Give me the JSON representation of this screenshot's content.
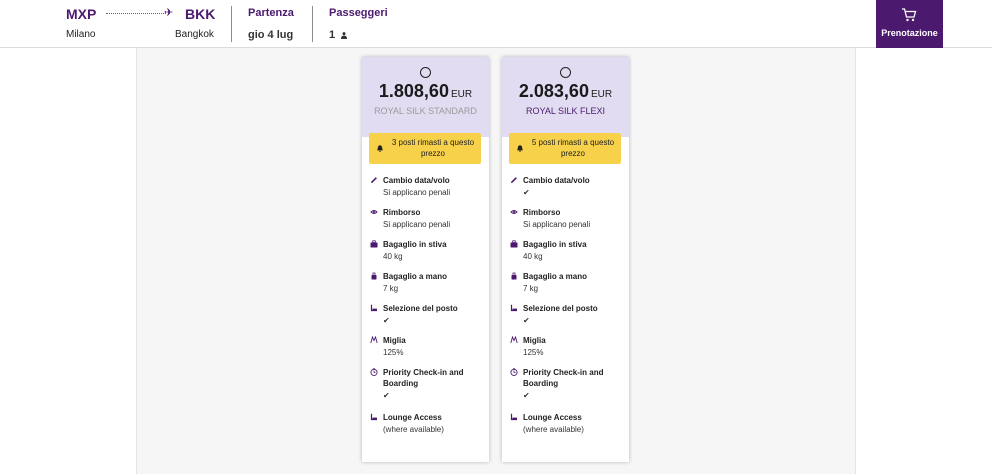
{
  "header": {
    "origin_code": "MXP",
    "origin_city": "Milano",
    "dest_code": "BKK",
    "dest_city": "Bangkok",
    "departure_label": "Partenza",
    "departure_value": "gio 4 lug",
    "passengers_label": "Passeggeri",
    "passengers_value": "1",
    "cart_label": "Prenotazione"
  },
  "colors": {
    "brand_purple": "#4b1a6e",
    "card_header": "#e2dcf2",
    "seats_badge": "#f7d14a"
  },
  "fares": [
    {
      "price": "1.808,60",
      "currency": "EUR",
      "name": "ROYAL SILK STANDARD",
      "name_color": "#9a9a9a",
      "seats": "3 posti rimasti a questo prezzo",
      "features": [
        {
          "icon": "pencil-icon",
          "title": "Cambio data/volo",
          "value": "Si applicano penali"
        },
        {
          "icon": "refund-icon",
          "title": "Rimborso",
          "value": "Si applicano penali"
        },
        {
          "icon": "checked-bag-icon",
          "title": "Bagaglio in stiva",
          "value": "40 kg"
        },
        {
          "icon": "carry-on-bag-icon",
          "title": "Bagaglio a mano",
          "value": "7 kg"
        },
        {
          "icon": "seat-icon",
          "title": "Selezione del posto",
          "value": "✔"
        },
        {
          "icon": "miles-icon",
          "title": "Miglia",
          "value": "125%"
        },
        {
          "icon": "priority-icon",
          "title": "Priority Check-in and Boarding",
          "value": "✔"
        },
        {
          "icon": "lounge-icon",
          "title": "Lounge Access",
          "value": "(where available)"
        }
      ]
    },
    {
      "price": "2.083,60",
      "currency": "EUR",
      "name": "ROYAL SILK FLEXI",
      "name_color": "#4b1a6e",
      "seats": "5 posti rimasti a questo prezzo",
      "features": [
        {
          "icon": "pencil-icon",
          "title": "Cambio data/volo",
          "value": "✔"
        },
        {
          "icon": "refund-icon",
          "title": "Rimborso",
          "value": "Si applicano penali"
        },
        {
          "icon": "checked-bag-icon",
          "title": "Bagaglio in stiva",
          "value": "40 kg"
        },
        {
          "icon": "carry-on-bag-icon",
          "title": "Bagaglio a mano",
          "value": "7 kg"
        },
        {
          "icon": "seat-icon",
          "title": "Selezione del posto",
          "value": "✔"
        },
        {
          "icon": "miles-icon",
          "title": "Miglia",
          "value": "125%"
        },
        {
          "icon": "priority-icon",
          "title": "Priority Check-in and Boarding",
          "value": "✔"
        },
        {
          "icon": "lounge-icon",
          "title": "Lounge Access",
          "value": "(where available)"
        }
      ]
    }
  ]
}
